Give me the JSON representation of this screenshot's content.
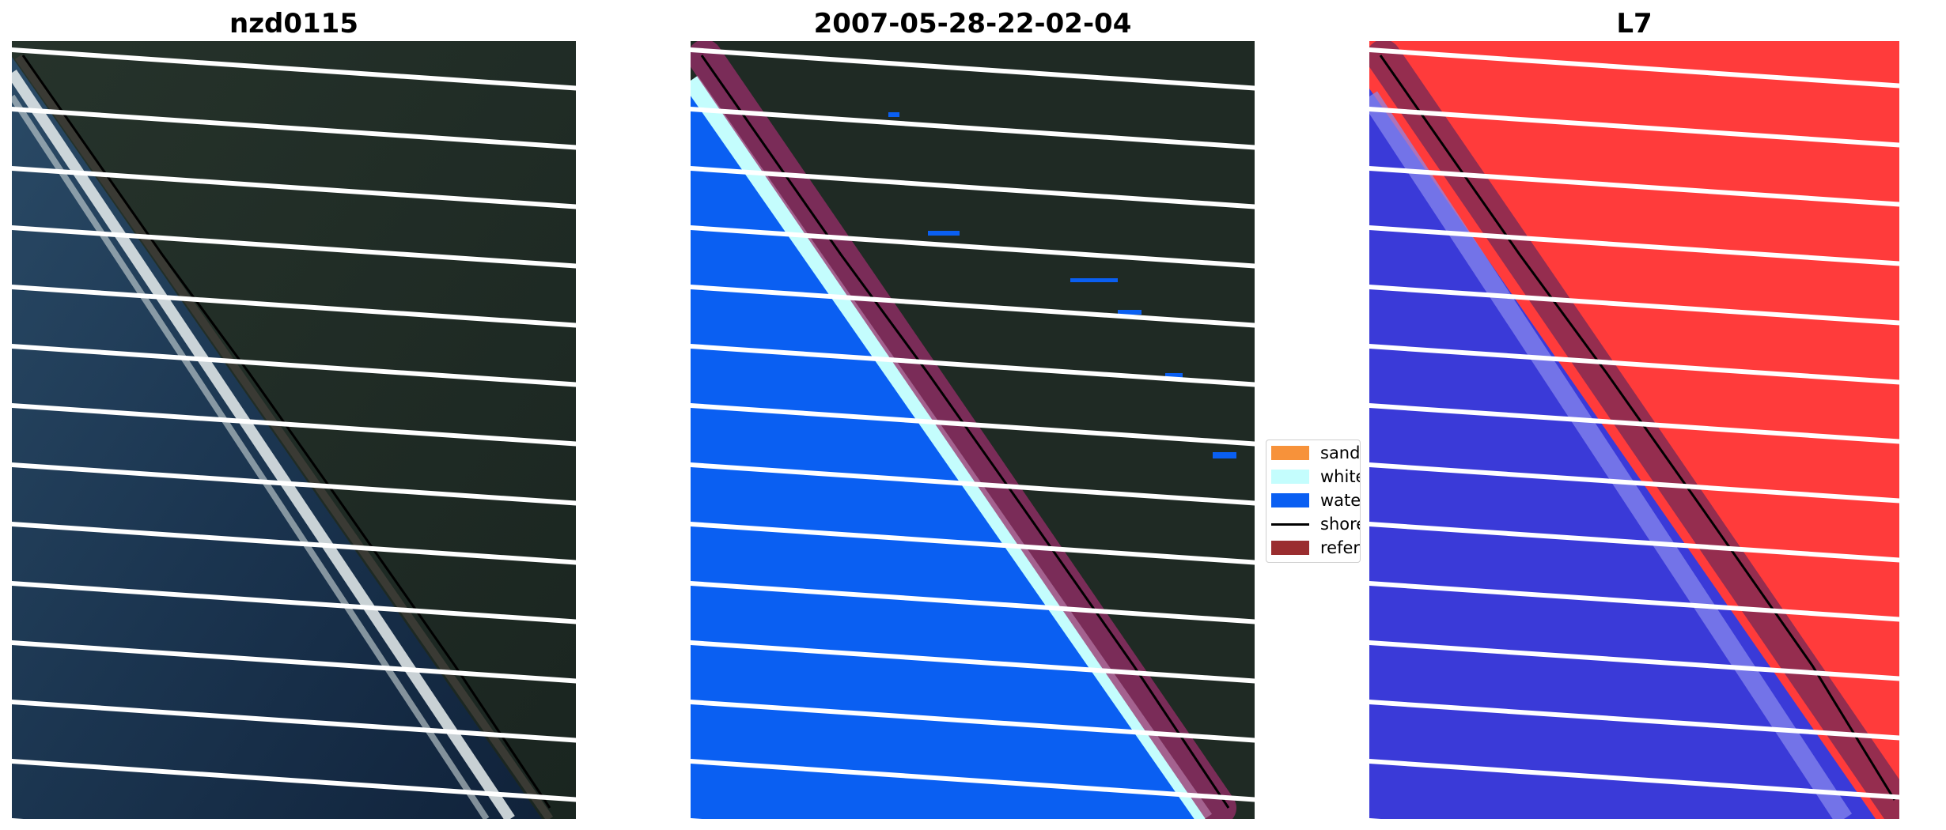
{
  "panels": [
    {
      "title": "nzd0115"
    },
    {
      "title": "2007-05-28-22-02-04"
    },
    {
      "title": "L7"
    }
  ],
  "legend": {
    "items": [
      {
        "label": "sand",
        "color": "#f7923a",
        "kind": "patch"
      },
      {
        "label": "whitewater",
        "color": "#c4fdfd",
        "kind": "patch"
      },
      {
        "label": "water",
        "color": "#0a5ff2",
        "kind": "patch"
      },
      {
        "label": "shoreline",
        "color": "#000000",
        "kind": "line"
      },
      {
        "label": "reference shoreline buffer",
        "color": "#9a2d2f",
        "kind": "patch"
      }
    ]
  },
  "colors": {
    "land_dark": "#1f2a22",
    "ocean_dark": "#102236",
    "surf": "#f2f2f2",
    "classified_water": "#0a5ff2",
    "mndwi_land": "#ff3b3b",
    "mndwi_water": "#3a3ad8",
    "scanline_gap": "#ffffff"
  }
}
